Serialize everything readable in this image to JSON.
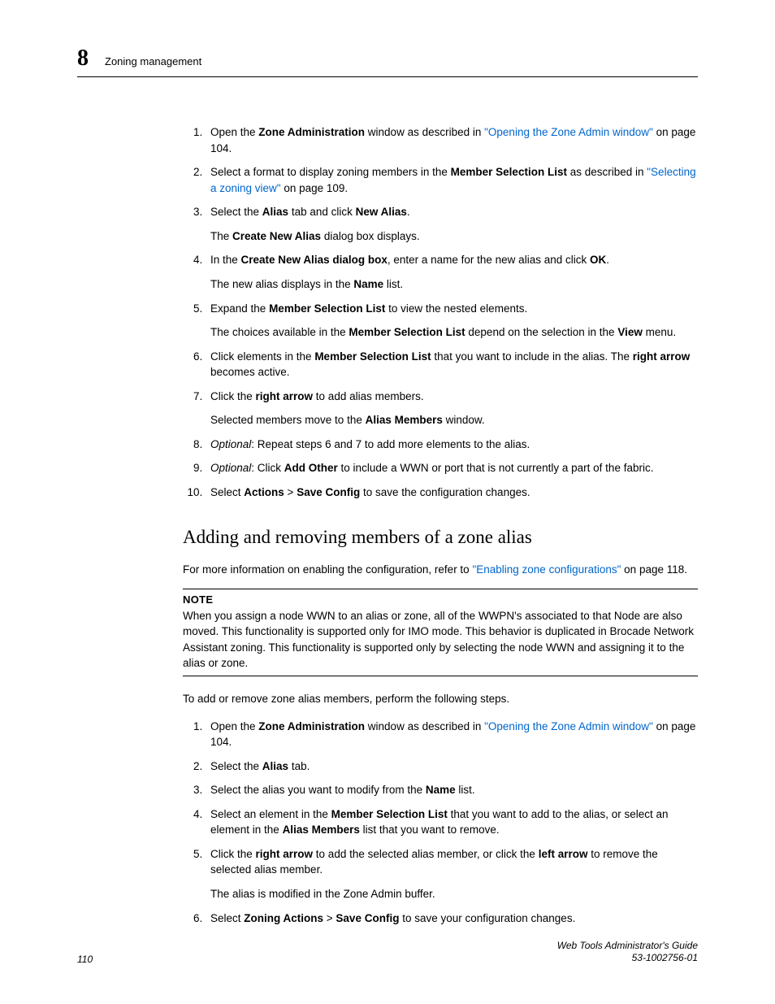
{
  "header": {
    "chapter_number": "8",
    "section_title": "Zoning management"
  },
  "steps1": [
    {
      "pre": "Open the ",
      "b1": "Zone Administration",
      "mid": " window as described in ",
      "link": "\"Opening the Zone Admin window\"",
      "post": " on page 104."
    },
    {
      "pre": "Select a format to display zoning members in the ",
      "b1": "Member Selection List",
      "mid": " as described in ",
      "link": "\"Selecting a zoning view\"",
      "post": " on page 109."
    },
    {
      "pre": "Select the ",
      "b1": "Alias",
      "mid": " tab and click ",
      "b2": "New Alias",
      "post": ".",
      "sub_pre": "The ",
      "sub_b": "Create New Alias",
      "sub_post": " dialog box displays."
    },
    {
      "pre": "In the ",
      "b1": "Create New Alias dialog box",
      "mid": ", enter a name for the new alias and click ",
      "b2": "OK",
      "post": ".",
      "sub_pre": "The new alias displays in the ",
      "sub_b": "Name",
      "sub_post": " list."
    },
    {
      "pre": "Expand the ",
      "b1": "Member Selection List",
      "post": " to view the nested elements.",
      "sub_pre": "The choices available in the ",
      "sub_b": "Member Selection List",
      "sub_mid": " depend on the selection in the ",
      "sub_b2": "View",
      "sub_post": " menu."
    },
    {
      "pre": "Click elements in the ",
      "b1": "Member Selection List",
      "mid": " that you want to include in the alias. The ",
      "b2": "right arrow",
      "post": " becomes active."
    },
    {
      "pre": "Click the ",
      "b1": "right arrow",
      "post": " to add alias members.",
      "sub_pre": "Selected members move to the ",
      "sub_b": "Alias Members",
      "sub_post": " window."
    },
    {
      "i": "Optional",
      "post_i": ": Repeat steps 6 and 7 to add more elements to the alias."
    },
    {
      "i": "Optional",
      "post_i": ": Click ",
      "b1": "Add Other",
      "post": " to include a WWN or port that is not currently a part of the fabric."
    },
    {
      "pre": "Select ",
      "b1": "Actions",
      "mid": " > ",
      "b2": "Save Config",
      "post": " to save the configuration changes."
    }
  ],
  "subheading": "Adding and removing members of a zone alias",
  "intro2_pre": "For more information on enabling the configuration, refer to ",
  "intro2_link": "\"Enabling zone configurations\"",
  "intro2_post": " on page 118.",
  "note": {
    "label": "NOTE",
    "body": "When you assign a node WWN to an alias or zone, all of the WWPN's associated to that Node are also moved. This functionality is supported only for IMO mode. This behavior is duplicated in Brocade Network Assistant zoning. This functionality is supported only by selecting the node WWN and assigning it to the alias or zone."
  },
  "lead2": "To add or remove zone alias members, perform the following steps.",
  "steps2": [
    {
      "pre": "Open the ",
      "b1": "Zone Administration",
      "mid": " window as described in ",
      "link": "\"Opening the Zone Admin window\"",
      "post": " on page 104."
    },
    {
      "pre": "Select the ",
      "b1": "Alias",
      "post": " tab."
    },
    {
      "pre": "Select the alias you want to modify from the ",
      "b1": "Name",
      "post": " list."
    },
    {
      "pre": "Select an element in the ",
      "b1": "Member Selection List",
      "mid": " that you want to add to the alias, or select an element in the ",
      "b2": "Alias Members",
      "post": " list that you want to remove."
    },
    {
      "pre": "Click the ",
      "b1": "right arrow",
      "mid": " to add the selected alias member, or click the ",
      "b2": "left arrow",
      "post": " to remove the selected alias member.",
      "sub_plain": "The alias is modified in the Zone Admin buffer."
    },
    {
      "pre": "Select ",
      "b1": "Zoning Actions",
      "mid": " > ",
      "b2": "Save Config",
      "post": " to save your configuration changes."
    }
  ],
  "footer": {
    "page_no": "110",
    "doc_title": "Web Tools Administrator's Guide",
    "doc_id": "53-1002756-01"
  },
  "colors": {
    "link": "#0066cc",
    "text": "#000000",
    "bg": "#ffffff"
  }
}
